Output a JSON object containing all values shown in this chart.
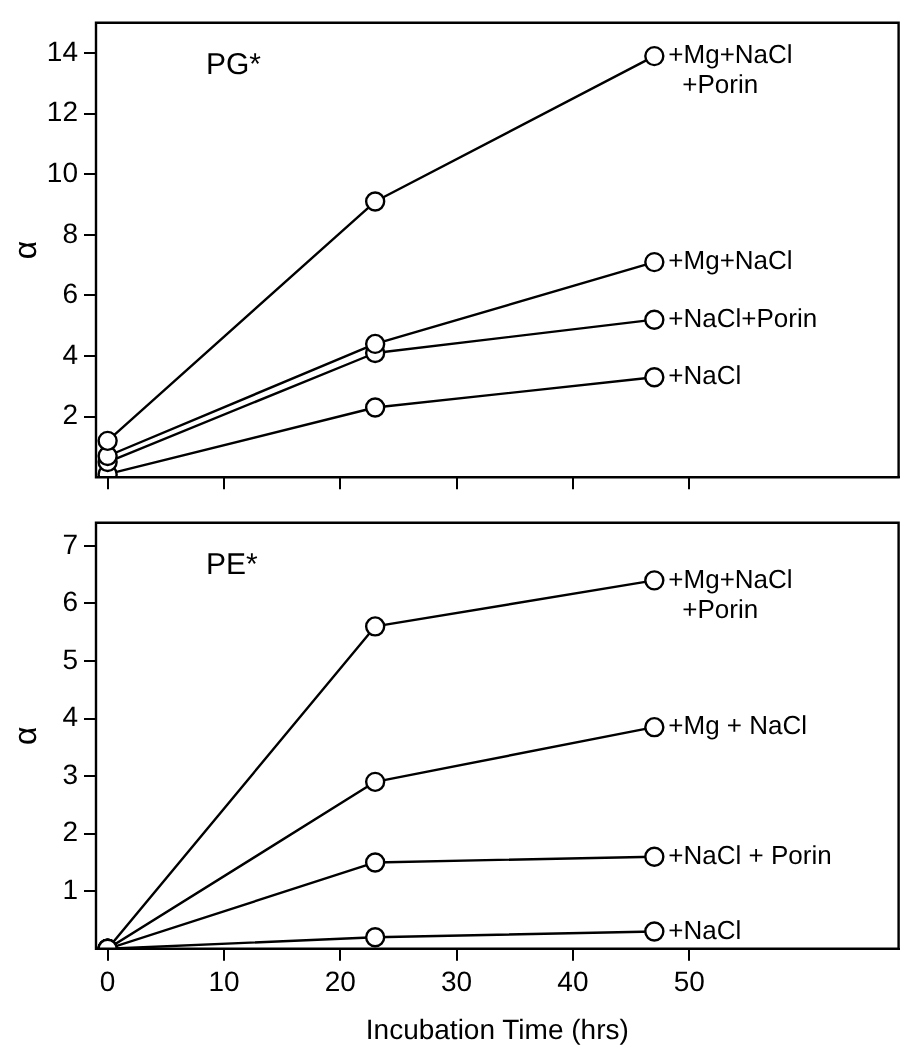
{
  "chart_data": [
    {
      "type": "line",
      "title": "PG*",
      "ylabel": "α",
      "x": [
        0,
        23,
        47
      ],
      "xlim": [
        -1,
        68
      ],
      "xticks": [
        0,
        10,
        20,
        30,
        40,
        50
      ],
      "ylim": [
        0,
        15
      ],
      "yticks": [
        2,
        4,
        6,
        8,
        10,
        12,
        14
      ],
      "tick_labels": "y",
      "marker": "circle",
      "grid": false,
      "legend": false,
      "series": [
        {
          "name": "+Mg+NaCl\n+Porin",
          "color": "#000000",
          "values": [
            1.2,
            9.1,
            13.9
          ]
        },
        {
          "name": "+Mg+NaCl",
          "color": "#000000",
          "values": [
            0.7,
            4.4,
            7.1
          ]
        },
        {
          "name": "+NaCl+Porin",
          "color": "#000000",
          "values": [
            0.5,
            4.1,
            5.2
          ]
        },
        {
          "name": "+NaCl",
          "color": "#000000",
          "values": [
            0.1,
            2.3,
            3.3
          ]
        }
      ]
    },
    {
      "type": "line",
      "title": "PE*",
      "ylabel": "α",
      "xlabel": "Incubation Time (hrs)",
      "x": [
        0,
        23,
        47
      ],
      "xlim": [
        -1,
        68
      ],
      "xticks": [
        0,
        10,
        20,
        30,
        40,
        50
      ],
      "ylim": [
        0,
        7.4
      ],
      "yticks": [
        1,
        2,
        3,
        4,
        5,
        6,
        7
      ],
      "marker": "circle",
      "grid": false,
      "legend": false,
      "series": [
        {
          "name": "+Mg+NaCl\n+Porin",
          "color": "#000000",
          "values": [
            0,
            5.6,
            6.4
          ]
        },
        {
          "name": "+Mg + NaCl",
          "color": "#000000",
          "values": [
            0,
            2.9,
            3.85
          ]
        },
        {
          "name": "+NaCl + Porin",
          "color": "#000000",
          "values": [
            0,
            1.5,
            1.6
          ]
        },
        {
          "name": "+NaCl",
          "color": "#000000",
          "values": [
            0,
            0.2,
            0.3
          ]
        }
      ]
    }
  ]
}
